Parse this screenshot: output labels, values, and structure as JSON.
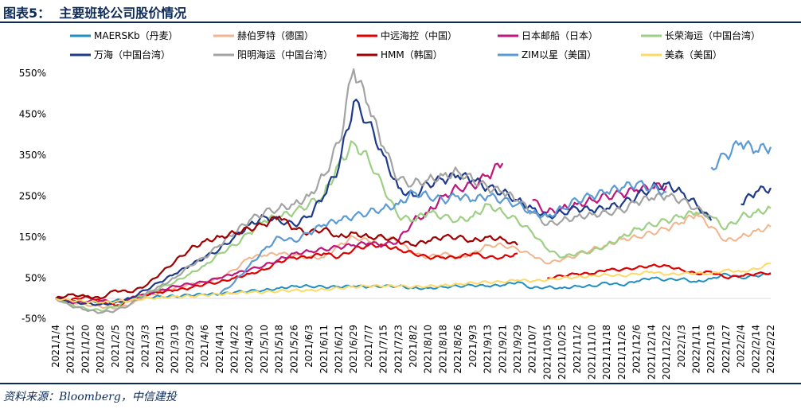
{
  "title": "图表5：  主要班轮公司股价情况",
  "source": "资料来源：Bloomberg，中信建投",
  "chart_data": {
    "type": "line",
    "ylim": [
      -50,
      575
    ],
    "y_ticks": [
      -50,
      50,
      150,
      250,
      350,
      450,
      550
    ],
    "y_tick_labels": [
      "-50%",
      "50%",
      "150%",
      "250%",
      "350%",
      "450%",
      "550%"
    ],
    "x_tick_labels": [
      "2021/1/4",
      "2021/1/12",
      "2021/1/20",
      "2021/1/28",
      "2021/2/5",
      "2021/2/23",
      "2021/3/3",
      "2021/3/11",
      "2021/3/19",
      "2021/3/29",
      "2021/4/6",
      "2021/4/14",
      "2021/4/22",
      "2021/4/30",
      "2021/5/10",
      "2021/5/18",
      "2021/5/26",
      "2021/6/3",
      "2021/6/11",
      "2021/6/21",
      "2021/6/29",
      "2021/7/7",
      "2021/7/15",
      "2021/7/23",
      "2021/8/2",
      "2021/8/10",
      "2021/8/18",
      "2021/8/26",
      "2021/9/3",
      "2021/9/13",
      "2021/9/21",
      "2021/9/29",
      "2021/10/7",
      "2021/10/15",
      "2021/10/25",
      "2021/11/2",
      "2021/11/10",
      "2021/11/18",
      "2021/11/26",
      "2021/12/6",
      "2021/12/14",
      "2021/12/22",
      "2022/1/3",
      "2022/1/11",
      "2022/1/19",
      "2022/1/27",
      "2022/2/4",
      "2022/2/14",
      "2022/2/22"
    ],
    "legend_position": "top",
    "grid": false,
    "series": [
      {
        "name": "MAERSKb（丹麦）",
        "color": "#1f8fc1",
        "width": 2,
        "values": [
          0,
          -12,
          -10,
          -8,
          -5,
          -5,
          2,
          5,
          5,
          8,
          10,
          10,
          15,
          18,
          20,
          25,
          30,
          30,
          28,
          28,
          30,
          28,
          30,
          30,
          25,
          25,
          28,
          30,
          32,
          30,
          32,
          40,
          25,
          28,
          25,
          30,
          30,
          38,
          32,
          42,
          50,
          45,
          48,
          40,
          48,
          60,
          50,
          55,
          60
        ]
      },
      {
        "name": "赫伯罗特（德国）",
        "color": "#f2b48c",
        "width": 2,
        "values": [
          0,
          -8,
          -15,
          -20,
          -25,
          -15,
          5,
          15,
          25,
          35,
          40,
          50,
          70,
          100,
          105,
          110,
          105,
          100,
          100,
          130,
          150,
          140,
          150,
          140,
          110,
          100,
          110,
          100,
          110,
          130,
          130,
          120,
          105,
          85,
          95,
          105,
          120,
          130,
          145,
          150,
          160,
          170,
          185,
          205,
          175,
          140,
          150,
          165,
          175
        ]
      },
      {
        "name": "中远海控（中国）",
        "color": "#e00000",
        "width": 2.2,
        "values": [
          0,
          -5,
          5,
          -5,
          -18,
          -5,
          10,
          15,
          20,
          25,
          35,
          40,
          50,
          60,
          70,
          90,
          100,
          100,
          110,
          100,
          120,
          130,
          130,
          120,
          110,
          100,
          100,
          100,
          110,
          100,
          100,
          110,
          null,
          50,
          55,
          60,
          60,
          70,
          70,
          75,
          80,
          80,
          70,
          60,
          65,
          50,
          55,
          60,
          62
        ]
      },
      {
        "name": "日本邮船（日本）",
        "color": "#c0157a",
        "width": 2.2,
        "values": [
          0,
          -10,
          -8,
          -5,
          -10,
          0,
          10,
          20,
          30,
          35,
          40,
          50,
          60,
          70,
          80,
          95,
          110,
          115,
          120,
          125,
          130,
          135,
          130,
          140,
          190,
          210,
          250,
          270,
          275,
          300,
          330,
          null,
          240,
          210,
          220,
          230,
          240,
          250,
          255,
          265,
          270,
          275,
          null,
          null,
          null,
          null,
          null,
          null,
          null
        ]
      },
      {
        "name": "长荣海运（中国台湾）",
        "color": "#9dcf85",
        "width": 2.2,
        "values": [
          0,
          -15,
          -25,
          -30,
          -20,
          -5,
          10,
          25,
          40,
          60,
          80,
          110,
          130,
          160,
          190,
          200,
          210,
          230,
          250,
          330,
          380,
          340,
          270,
          200,
          190,
          210,
          200,
          190,
          200,
          230,
          210,
          190,
          160,
          120,
          100,
          110,
          115,
          130,
          150,
          170,
          180,
          190,
          200,
          210,
          200,
          170,
          200,
          210,
          220
        ]
      },
      {
        "name": "万海（中国台湾）",
        "color": "#1e3a8a",
        "width": 2.2,
        "values": [
          0,
          -8,
          -12,
          -15,
          -10,
          0,
          20,
          40,
          60,
          80,
          100,
          120,
          150,
          180,
          200,
          190,
          180,
          200,
          250,
          320,
          480,
          430,
          350,
          270,
          250,
          280,
          290,
          300,
          290,
          270,
          260,
          240,
          220,
          200,
          210,
          220,
          215,
          220,
          230,
          250,
          270,
          280,
          260,
          230,
          190,
          null,
          230,
          260,
          270
        ]
      },
      {
        "name": "阳明海运（中国台湾）",
        "color": "#a3a3a3",
        "width": 2.2,
        "values": [
          0,
          -18,
          -28,
          -35,
          -30,
          -15,
          10,
          30,
          50,
          80,
          100,
          130,
          160,
          190,
          210,
          220,
          230,
          250,
          300,
          380,
          560,
          470,
          370,
          290,
          280,
          290,
          300,
          310,
          290,
          270,
          260,
          240,
          210,
          180,
          190,
          200,
          205,
          210,
          215,
          235,
          245,
          250,
          240,
          220,
          200,
          null,
          null,
          null,
          null
        ]
      },
      {
        "name": "HMM（韩国）",
        "color": "#a00000",
        "width": 2.2,
        "values": [
          0,
          10,
          5,
          0,
          20,
          15,
          30,
          60,
          90,
          120,
          140,
          150,
          160,
          170,
          180,
          200,
          170,
          160,
          170,
          150,
          160,
          150,
          150,
          140,
          130,
          140,
          150,
          150,
          140,
          150,
          145,
          130,
          null,
          null,
          null,
          null,
          null,
          null,
          null,
          null,
          null,
          null,
          null,
          null,
          null,
          null,
          null,
          null,
          null
        ]
      },
      {
        "name": "ZIM以星（美国）",
        "color": "#5b9bd5",
        "width": 2.2,
        "values": [
          null,
          null,
          null,
          null,
          null,
          null,
          null,
          null,
          null,
          null,
          null,
          10,
          40,
          80,
          120,
          150,
          140,
          160,
          180,
          190,
          200,
          210,
          220,
          230,
          260,
          250,
          240,
          250,
          240,
          250,
          240,
          230,
          210,
          200,
          220,
          240,
          250,
          260,
          270,
          280,
          270,
          260,
          null,
          null,
          320,
          350,
          380,
          360,
          370
        ]
      },
      {
        "name": "美森（美国）",
        "color": "#ffd966",
        "width": 2,
        "values": [
          0,
          -5,
          -8,
          -10,
          -8,
          -5,
          0,
          2,
          5,
          5,
          8,
          10,
          12,
          15,
          15,
          18,
          20,
          20,
          22,
          25,
          28,
          30,
          30,
          30,
          28,
          30,
          32,
          35,
          38,
          40,
          40,
          45,
          42,
          45,
          50,
          52,
          55,
          58,
          55,
          60,
          65,
          58,
          60,
          62,
          60,
          70,
          65,
          72,
          85
        ]
      }
    ]
  }
}
